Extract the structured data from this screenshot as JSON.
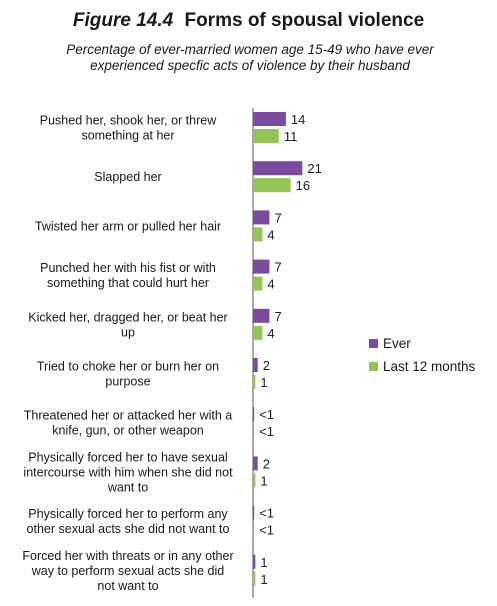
{
  "figure_number": "Figure 14.4",
  "figure_title": "Forms of spousal violence",
  "subtitle": "Percentage of ever-married women age 15-49 who have ever experienced specfic acts of violence by their husband",
  "colors": {
    "ever": "#7b4c9e",
    "last12": "#94c356"
  },
  "chart_data": {
    "type": "bar",
    "orientation": "horizontal",
    "title": "Forms of spousal violence",
    "legend_placement": "right",
    "grid": false,
    "categories": [
      "Pushed her, shook her, or threw something at her",
      "Slapped her",
      "Twisted her arm or pulled her hair",
      "Punched her with his fist or with something that could hurt her",
      "Kicked her, dragged her, or beat her up",
      "Tried to choke her or burn her on purpose",
      "Threatened her or attacked her with a knife, gun, or other weapon",
      "Physically forced her to have sexual intercourse with him when she did not want to",
      "Physically forced her to perform any other sexual acts she did not want to",
      "Forced her with threats or in any other way to perform sexual acts she did not want to"
    ],
    "category_lines": [
      [
        "Pushed her, shook her, or threw",
        "something at her"
      ],
      [
        "Slapped her"
      ],
      [
        "Twisted her arm or pulled her hair"
      ],
      [
        "Punched her with his fist or with",
        "something that could hurt her"
      ],
      [
        "Kicked her, dragged her, or beat her",
        "up"
      ],
      [
        "Tried to choke her or burn her on",
        "purpose"
      ],
      [
        "Threatened her or attacked her with a",
        "knife, gun, or other weapon"
      ],
      [
        "Physically forced her to have sexual",
        "intercourse with him when she did not",
        "want to"
      ],
      [
        "Physically forced her to perform any",
        "other sexual acts she did not want to"
      ],
      [
        "Forced her with threats or in any other",
        "way to perform sexual acts she did",
        "not want to"
      ]
    ],
    "series": [
      {
        "name": "Ever",
        "values": [
          14,
          21,
          7,
          7,
          7,
          2,
          0.4,
          2,
          0.4,
          1
        ],
        "labels": [
          "14",
          "21",
          "7",
          "7",
          "7",
          "2",
          "<1",
          "2",
          "<1",
          "1"
        ]
      },
      {
        "name": "Last 12 months",
        "values": [
          11,
          16,
          4,
          4,
          4,
          1,
          0.4,
          1,
          0.4,
          1
        ],
        "labels": [
          "11",
          "16",
          "4",
          "4",
          "4",
          "1",
          "<1",
          "1",
          "<1",
          "1"
        ]
      }
    ]
  }
}
